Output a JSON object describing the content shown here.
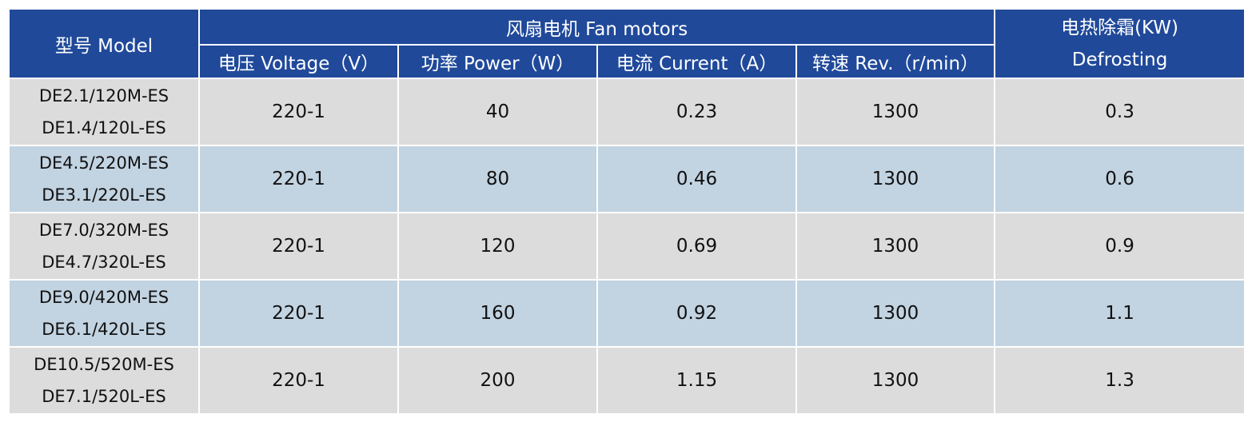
{
  "header": {
    "model": "型号 Model",
    "fan_motors": "风扇电机 Fan motors",
    "defrost": [
      "电热除霜(KW)",
      "Defrosting"
    ],
    "sub_columns": [
      "电压 Voltage（V）",
      "功率 Power（W）",
      "电流 Current（A）",
      "转速 Rev.（r/min）"
    ]
  },
  "table": {
    "rows": [
      {
        "model": [
          "DE2.1/120M-ES",
          "DE1.4/120L-ES"
        ],
        "cells": [
          "220-1",
          40,
          0.23,
          1300,
          0.3
        ]
      },
      {
        "model": [
          "DE4.5/220M-ES",
          "DE3.1/220L-ES"
        ],
        "cells": [
          "220-1",
          80,
          0.46,
          1300,
          0.6
        ]
      },
      {
        "model": [
          "DE7.0/320M-ES",
          "DE4.7/320L-ES"
        ],
        "cells": [
          "220-1",
          120,
          0.69,
          1300,
          0.9
        ]
      },
      {
        "model": [
          "DE9.0/420M-ES",
          "DE6.1/420L-ES"
        ],
        "cells": [
          "220-1",
          160,
          0.92,
          1300,
          1.1
        ]
      },
      {
        "model": [
          "DE10.5/520M-ES",
          "DE7.1/520L-ES"
        ],
        "cells": [
          "220-1",
          200,
          1.15,
          1300,
          1.3
        ]
      }
    ]
  }
}
